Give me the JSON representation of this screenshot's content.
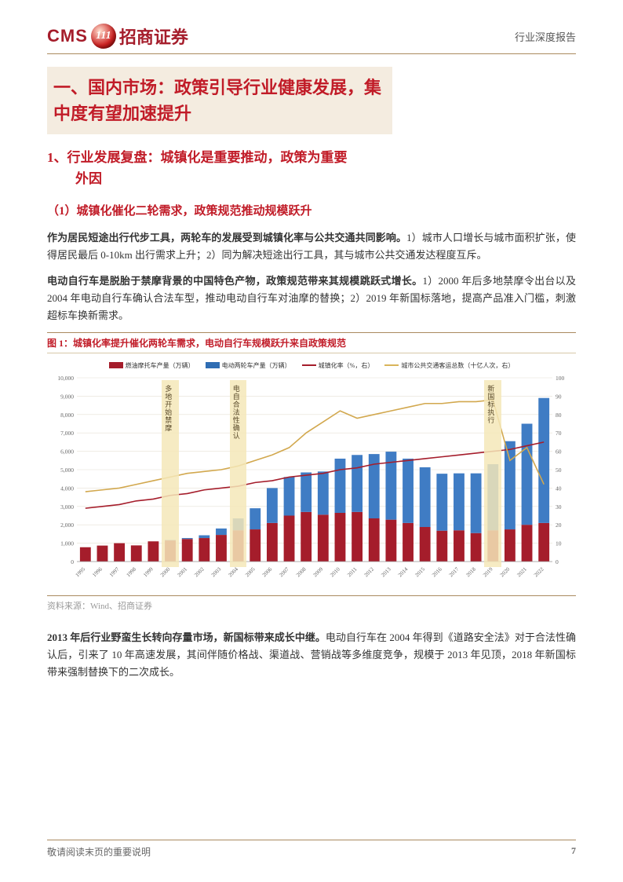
{
  "header": {
    "logo_en": "CMS",
    "logo_badge": "111",
    "logo_cn": "招商证券",
    "report_type": "行业深度报告"
  },
  "h1": "一、国内市场：政策引导行业健康发展，集中度有望加速提升",
  "h2_line1": "1、行业发展复盘：城镇化是重要推动，政策为重要",
  "h2_line2": "外因",
  "h3": "（1）城镇化催化二轮需求，政策规范推动规模跃升",
  "p1_bold": "作为居民短途出行代步工具，两轮车的发展受到城镇化率与公共交通共同影响。",
  "p1_rest": "1）城市人口增长与城市面积扩张，使得居民最后 0-10km 出行需求上升；2）同为解决短途出行工具，其与城市公共交通发达程度互斥。",
  "p2_bold": "电动自行车是脱胎于禁摩背景的中国特色产物，政策规范带来其规模跳跃式增长。",
  "p2_rest": "1）2000 年后多地禁摩令出台以及 2004 年电动自行车确认合法车型，推动电动自行车对油摩的替换；2）2019 年新国标落地，提高产品准入门槛，刺激超标车换新需求。",
  "chart": {
    "title": "图 1：城镇化率提升催化两轮车需求，电动自行车规模跃升来自政策规范",
    "legend": [
      {
        "label": "燃油摩托车产量（万辆）",
        "color": "#a51d2b",
        "type": "bar"
      },
      {
        "label": "电动两轮车产量（万辆）",
        "color": "#2f6db3",
        "type": "bar"
      },
      {
        "label": "城镇化率（%，右）",
        "color": "#a51d2b",
        "type": "line"
      },
      {
        "label": "城市公共交通客运总数（十亿人次，右）",
        "color": "#d9b45a",
        "type": "line"
      }
    ],
    "years": [
      1995,
      1996,
      1997,
      1998,
      1999,
      2000,
      2001,
      2002,
      2003,
      2004,
      2005,
      2006,
      2007,
      2008,
      2009,
      2010,
      2011,
      2012,
      2013,
      2014,
      2015,
      2016,
      2017,
      2018,
      2019,
      2020,
      2021,
      2022
    ],
    "motorcycle": [
      780,
      870,
      1000,
      880,
      1100,
      1150,
      1230,
      1280,
      1450,
      1700,
      1750,
      2100,
      2500,
      2700,
      2550,
      2650,
      2700,
      2350,
      2280,
      2100,
      1880,
      1680,
      1700,
      1550,
      1700,
      1750,
      2000,
      2100
    ],
    "ebike": [
      0,
      0,
      0,
      0,
      0,
      20,
      50,
      150,
      350,
      650,
      1150,
      1900,
      2100,
      2150,
      2350,
      2950,
      3100,
      3500,
      3700,
      3500,
      3250,
      3100,
      3100,
      3250,
      3600,
      4800,
      5500,
      6800
    ],
    "urban_rate": [
      29,
      30,
      31,
      33,
      34,
      36,
      37,
      39,
      40,
      41,
      43,
      44,
      46,
      47,
      48,
      50,
      51,
      53,
      54,
      55,
      56,
      57,
      58,
      59,
      60,
      61,
      63,
      65
    ],
    "transit": [
      38,
      39,
      40,
      42,
      44,
      46,
      48,
      49,
      50,
      52,
      55,
      58,
      62,
      70,
      76,
      82,
      78,
      80,
      82,
      84,
      86,
      86,
      87,
      87,
      88,
      55,
      62,
      42
    ],
    "y_left_max": 10000,
    "y_left_step": 1000,
    "y_right_max": 100,
    "y_right_step": 10,
    "annotations": [
      {
        "year_idx": 5,
        "text": "多地开始禁摩"
      },
      {
        "year_idx": 9,
        "text": "电自合法性确认"
      },
      {
        "year_idx": 24,
        "text": "新国标执行"
      }
    ],
    "colors": {
      "bar_moto": "#a51d2b",
      "bar_ebike": "#3f7cc4",
      "line_urban": "#a51d2b",
      "line_transit": "#d2a84e",
      "grid": "#e6e0d4",
      "band": "#f5e7b8"
    },
    "source": "资料来源：Wind、招商证券"
  },
  "p3_bold": "2013 年后行业野蛮生长转向存量市场，新国标带来成长中继。",
  "p3_rest": "电动自行车在 2004 年得到《道路安全法》对于合法性确认后，引来了 10 年高速发展，其间伴随价格战、渠道战、营销战等多维度竞争，规模于 2013 年见顶，2018 年新国标带来强制替换下的二次成长。",
  "footer": {
    "note": "敬请阅读末页的重要说明",
    "page": "7"
  }
}
